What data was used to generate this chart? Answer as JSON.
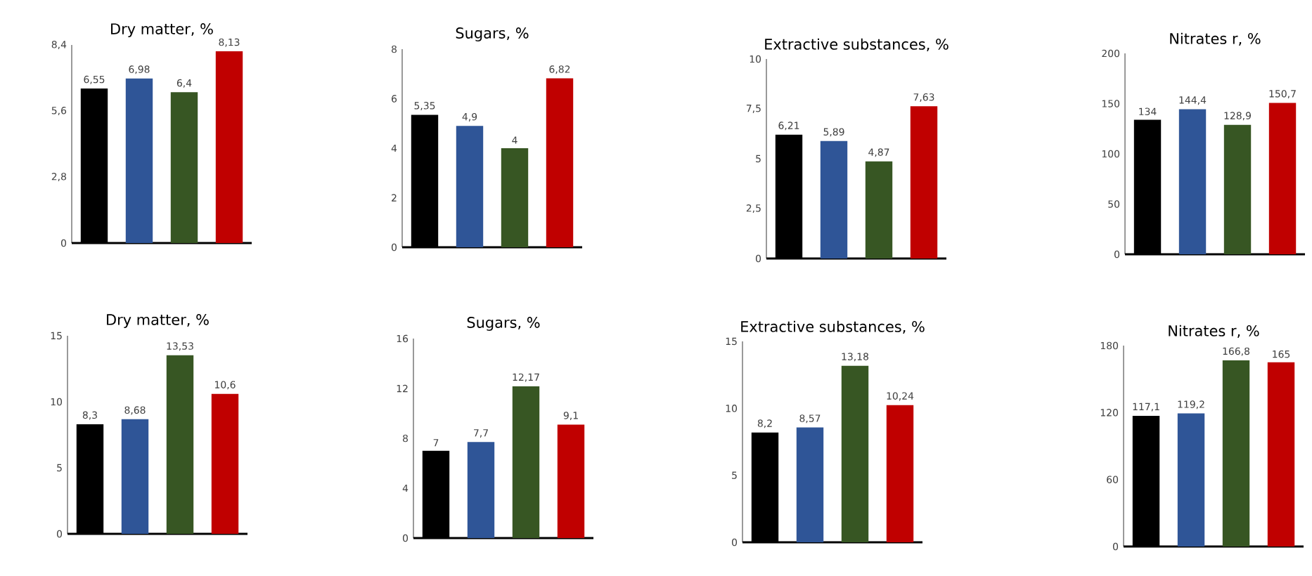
{
  "chart_data": [
    {
      "type": "bar",
      "title": "Dry matter, %",
      "categories": [
        null,
        null,
        null,
        null
      ],
      "values": [
        6.55,
        6.98,
        6.4,
        8.13
      ],
      "value_labels": [
        "6,55",
        "6,98",
        "6,4",
        "8,13"
      ],
      "colors": [
        "#000000",
        "#2f5597",
        "#375623",
        "#c00000"
      ],
      "ylim": [
        0,
        8.4
      ],
      "yticks": [
        0,
        {
          "value": 2.8,
          "label": "2,8"
        },
        {
          "value": 5.6,
          "label": "5,6"
        },
        {
          "value": 8.4,
          "label": "8,4"
        }
      ],
      "grid": false
    },
    {
      "type": "bar",
      "title": "Sugars, %",
      "categories": [
        null,
        null,
        null,
        null
      ],
      "values": [
        5.35,
        4.9,
        4,
        6.82
      ],
      "value_labels": [
        "5,35",
        "4,9",
        "4",
        "6,82"
      ],
      "colors": [
        "#000000",
        "#2f5597",
        "#375623",
        "#c00000"
      ],
      "ylim": [
        0,
        8
      ],
      "yticks": [
        0,
        2,
        4,
        6,
        8
      ],
      "grid": false
    },
    {
      "type": "bar",
      "title": "Extractive substances, %",
      "categories": [
        null,
        null,
        null,
        null
      ],
      "values": [
        6.21,
        5.89,
        4.87,
        7.63
      ],
      "value_labels": [
        "6,21",
        "5,89",
        "4,87",
        "7,63"
      ],
      "colors": [
        "#000000",
        "#2f5597",
        "#375623",
        "#c00000"
      ],
      "ylim": [
        0,
        10
      ],
      "yticks": [
        0,
        {
          "value": 2.5,
          "label": "2,5"
        },
        5,
        {
          "value": 7.5,
          "label": "7,5"
        },
        10
      ],
      "grid": false
    },
    {
      "type": "bar",
      "title": "Nitrates r, %",
      "categories": [
        null,
        null,
        null,
        null
      ],
      "values": [
        134,
        144.4,
        128.9,
        150.7
      ],
      "value_labels": [
        "134",
        "144,4",
        "128,9",
        "150,7"
      ],
      "colors": [
        "#000000",
        "#2f5597",
        "#375623",
        "#c00000"
      ],
      "ylim": [
        0,
        200
      ],
      "yticks": [
        0,
        50,
        100,
        150,
        200
      ],
      "grid": false
    },
    {
      "type": "bar",
      "title": "Dry matter, %",
      "categories": [
        null,
        null,
        null,
        null
      ],
      "values": [
        8.3,
        8.68,
        13.53,
        10.6
      ],
      "value_labels": [
        "8,3",
        "8,68",
        "13,53",
        "10,6"
      ],
      "colors": [
        "#000000",
        "#2f5597",
        "#375623",
        "#c00000"
      ],
      "ylim": [
        0,
        15
      ],
      "yticks": [
        0,
        5,
        10,
        15
      ],
      "grid": false
    },
    {
      "type": "bar",
      "title": "Sugars, %",
      "categories": [
        null,
        null,
        null,
        null
      ],
      "values": [
        7,
        7.7,
        12.17,
        9.1
      ],
      "value_labels": [
        "7",
        "7,7",
        "12,17",
        "9,1"
      ],
      "colors": [
        "#000000",
        "#2f5597",
        "#375623",
        "#c00000"
      ],
      "ylim": [
        0,
        16
      ],
      "yticks": [
        0,
        4,
        8,
        12,
        16
      ],
      "grid": false
    },
    {
      "type": "bar",
      "title": "Extractive substances, %",
      "categories": [
        null,
        null,
        null,
        null
      ],
      "values": [
        8.2,
        8.57,
        13.18,
        10.24
      ],
      "value_labels": [
        "8,2",
        "8,57",
        "13,18",
        "10,24"
      ],
      "colors": [
        "#000000",
        "#2f5597",
        "#375623",
        "#c00000"
      ],
      "ylim": [
        0,
        15
      ],
      "yticks": [
        0,
        5,
        10,
        15
      ],
      "grid": false
    },
    {
      "type": "bar",
      "title": "Nitrates r, %",
      "categories": [
        null,
        null,
        null,
        null
      ],
      "values": [
        117.1,
        119.2,
        166.8,
        165
      ],
      "value_labels": [
        "117,1",
        "119,2",
        "166,8",
        "165"
      ],
      "colors": [
        "#000000",
        "#2f5597",
        "#375623",
        "#c00000"
      ],
      "ylim": [
        0,
        180
      ],
      "yticks": [
        0,
        60,
        120,
        180
      ],
      "grid": false
    }
  ]
}
